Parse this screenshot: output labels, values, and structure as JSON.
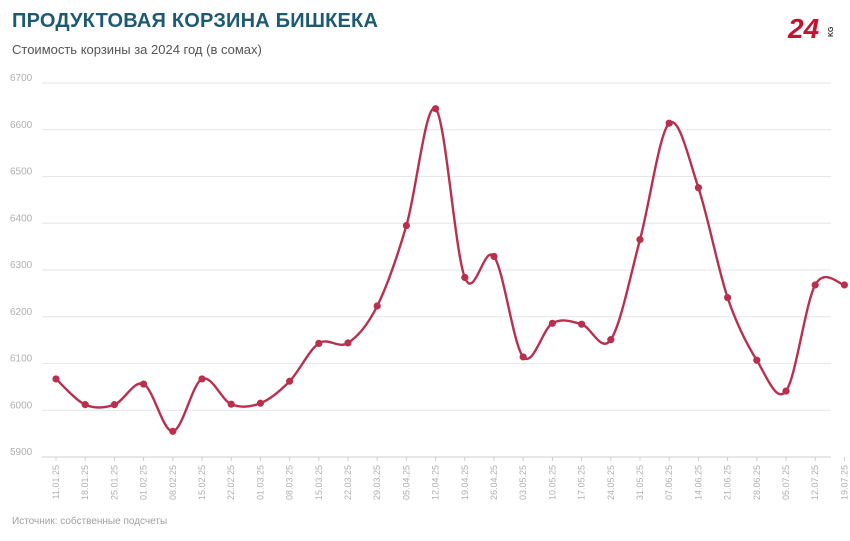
{
  "header": {
    "title": "ПРОДУКТОВАЯ КОРЗИНА БИШКЕКА",
    "subtitle": "Стоимость корзины за 2024 год (в сомах)",
    "logo_text_main": "24",
    "logo_text_small": "KG"
  },
  "footer": {
    "source": "Источник: собственные подсчеты"
  },
  "colors": {
    "line": "#b9304f",
    "title": "#1d5b73",
    "grid": "#e6e6e6",
    "tick_text": "#b0b0b0",
    "logo": "#c41230"
  },
  "chart_data": {
    "type": "line",
    "categories": [
      "11.01.25",
      "18.01.25",
      "25.01.25",
      "01.02.25",
      "08.02.25",
      "15.02.25",
      "22.02.25",
      "01.03.25",
      "08.03.25",
      "15.03.25",
      "22.03.25",
      "29.03.25",
      "05.04.25",
      "12.04.25",
      "19.04.25",
      "26.04.25",
      "03.05.25",
      "10.05.25",
      "17.05.25",
      "24.05.25",
      "31.05.25",
      "07.06.25",
      "14.06.25",
      "21.06.25",
      "28.06.25",
      "05.07.25",
      "12.07.25",
      "19.07.25"
    ],
    "series": [
      {
        "values": [
          6067,
          6012,
          6012,
          6056,
          5955,
          6067,
          6013,
          6015,
          6062,
          6143,
          6144,
          6223,
          6395,
          6645,
          6284,
          6329,
          6114,
          6186,
          6184,
          6151,
          6365,
          6614,
          6476,
          6241,
          6107,
          6041,
          6268,
          6268
        ]
      }
    ],
    "yticks": [
      5900,
      6000,
      6100,
      6200,
      6300,
      6400,
      6500,
      6600,
      6700
    ],
    "ylim": [
      5900,
      6700
    ],
    "grid": true,
    "legend": "none",
    "smooth": true
  }
}
